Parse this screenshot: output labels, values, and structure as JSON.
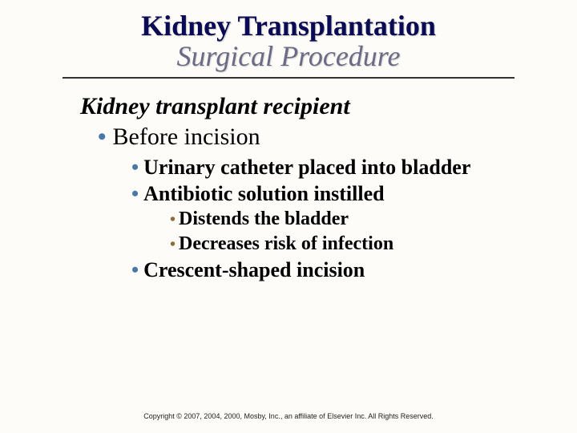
{
  "title": {
    "line1": "Kidney Transplantation",
    "line2": "Surgical Procedure"
  },
  "subhead": "Kidney transplant recipient",
  "bullets": {
    "l1a": "Before incision",
    "l2a": "Urinary catheter placed into bladder",
    "l2b": "Antibiotic solution instilled",
    "l3a": "Distends the bladder",
    "l3b": "Decreases risk of infection",
    "l2c": "Crescent-shaped incision"
  },
  "footer": "Copyright © 2007, 2004, 2000, Mosby, Inc., an affiliate of Elsevier Inc. All Rights Reserved.",
  "colors": {
    "title1": "#0b0b55",
    "title2": "#6b6b85",
    "bullet_primary": "#4878a8",
    "bullet_tertiary": "#8b6c3e",
    "background": "#fdfcf8",
    "rule": "#333333"
  },
  "fonts": {
    "family": "Times New Roman",
    "title_size": 36,
    "subhead_size": 30,
    "lvl1_size": 30,
    "lvl2_size": 26,
    "lvl3_size": 24,
    "footer_size": 9
  }
}
